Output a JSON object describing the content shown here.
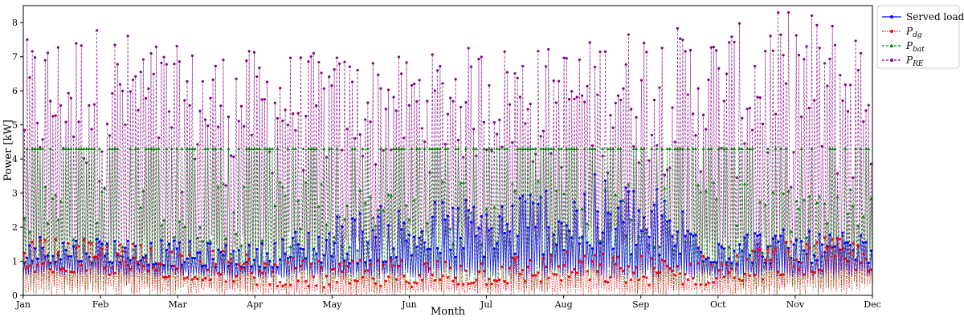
{
  "chart_data": {
    "type": "line",
    "title": "",
    "xlabel": "Month",
    "ylabel": "Power [kW]",
    "ylim": [
      0,
      8.5
    ],
    "yticks": [
      0,
      1,
      2,
      3,
      4,
      5,
      6,
      7,
      8
    ],
    "x_ticks": [
      "Jan",
      "Feb",
      "Mar",
      "Apr",
      "May",
      "Jun",
      "Jul",
      "Aug",
      "Sep",
      "Oct",
      "Nov",
      "Dec"
    ],
    "legend_placement": "outside-top-right",
    "grid": false,
    "series": [
      {
        "name": "Served load",
        "legend_main": "Served load",
        "legend_sub": "",
        "color": "#0000ff",
        "linestyle": "solid",
        "marker": "circle",
        "monthly_max": [
          1.8,
          1.8,
          1.6,
          1.5,
          2.4,
          2.8,
          3.0,
          3.6,
          3.5,
          2.1,
          1.9,
          1.8
        ],
        "monthly_mean": [
          0.95,
          0.95,
          0.85,
          0.8,
          0.9,
          1.0,
          1.1,
          1.2,
          1.1,
          0.9,
          0.95,
          0.95
        ],
        "monthly_min": [
          0.55,
          0.55,
          0.5,
          0.5,
          0.5,
          0.5,
          0.5,
          0.5,
          0.5,
          0.5,
          0.5,
          0.55
        ]
      },
      {
        "name": "P_dg",
        "legend_main": "P",
        "legend_sub": "dg",
        "color": "#ff0000",
        "linestyle": "dotted",
        "marker": "circle",
        "monthly_max": [
          1.7,
          1.6,
          1.5,
          1.2,
          1.0,
          1.1,
          1.2,
          1.3,
          1.2,
          1.2,
          1.7,
          1.7
        ],
        "monthly_mean": [
          0.7,
          0.6,
          0.5,
          0.3,
          0.2,
          0.25,
          0.3,
          0.4,
          0.3,
          0.3,
          0.6,
          0.7
        ],
        "monthly_min": [
          0,
          0,
          0,
          0,
          0,
          0,
          0,
          0,
          0,
          0,
          0,
          0
        ]
      },
      {
        "name": "P_bat",
        "legend_main": "P",
        "legend_sub": "bat",
        "color": "#008000",
        "linestyle": "dashed",
        "marker": "triangle",
        "monthly_max": [
          4.3,
          4.3,
          4.3,
          4.3,
          4.3,
          4.3,
          4.3,
          4.3,
          4.3,
          4.3,
          4.3,
          4.3
        ],
        "monthly_mean": [
          1.0,
          1.0,
          1.1,
          1.2,
          1.3,
          1.3,
          1.4,
          1.5,
          1.4,
          1.2,
          1.0,
          1.0
        ],
        "monthly_min": [
          0,
          0,
          0,
          0,
          0,
          0,
          0,
          0,
          0,
          0,
          0,
          0
        ]
      },
      {
        "name": "P_RE",
        "legend_main": "P",
        "legend_sub": "RE",
        "color": "#800080",
        "linestyle": "dashed",
        "marker": "circle",
        "monthly_max": [
          7.5,
          8.0,
          7.3,
          7.2,
          7.1,
          7.0,
          7.4,
          7.3,
          8.0,
          7.8,
          8.5,
          7.9
        ],
        "monthly_mean": [
          2.8,
          3.0,
          2.9,
          3.2,
          3.4,
          3.5,
          3.6,
          3.4,
          3.5,
          3.2,
          2.9,
          2.7
        ],
        "monthly_min": [
          0,
          0,
          0,
          0,
          0,
          0,
          0,
          0,
          0,
          0,
          0,
          0
        ]
      }
    ]
  }
}
